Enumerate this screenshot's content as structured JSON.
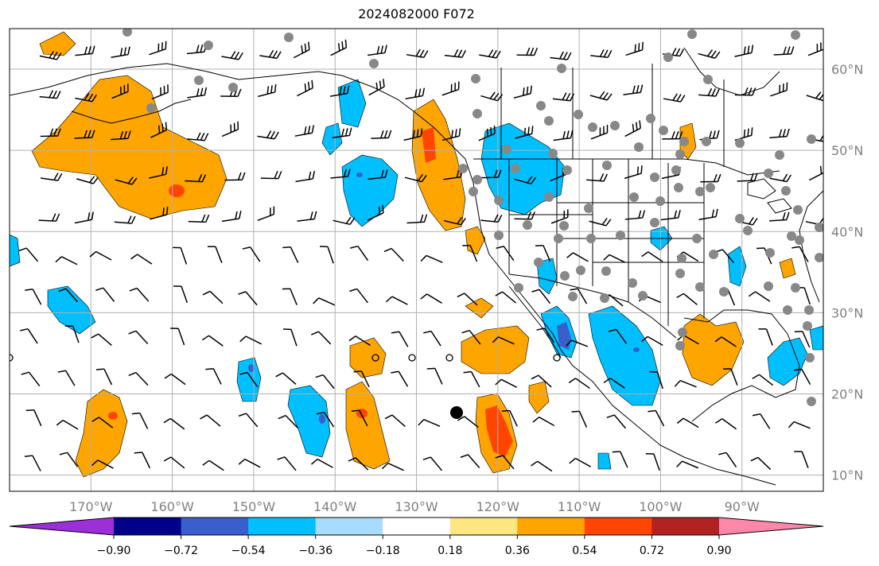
{
  "title": "2024082000 F072",
  "map": {
    "lon_range": [
      -180,
      -80
    ],
    "lat_range": [
      8,
      65
    ],
    "gridlines": true,
    "lon_ticks": [
      {
        "value": -170,
        "label": "170°W"
      },
      {
        "value": -160,
        "label": "160°W"
      },
      {
        "value": -150,
        "label": "150°W"
      },
      {
        "value": -140,
        "label": "140°W"
      },
      {
        "value": -130,
        "label": "130°W"
      },
      {
        "value": -120,
        "label": "120°W"
      },
      {
        "value": -110,
        "label": "110°W"
      },
      {
        "value": -100,
        "label": "100°W"
      },
      {
        "value": -90,
        "label": "90°W"
      }
    ],
    "lat_ticks": [
      {
        "value": 60,
        "label": "60°N"
      },
      {
        "value": 50,
        "label": "50°N"
      },
      {
        "value": 40,
        "label": "40°N"
      },
      {
        "value": 30,
        "label": "30°N"
      },
      {
        "value": 20,
        "label": "20°N"
      },
      {
        "value": 10,
        "label": "10°N"
      }
    ],
    "lat_label_side": "right"
  },
  "colorbar": {
    "bounds": [
      -0.9,
      -0.72,
      -0.54,
      -0.36,
      -0.18,
      0.18,
      0.36,
      0.54,
      0.72,
      0.9
    ],
    "tick_labels": [
      "−0.90",
      "−0.72",
      "−0.54",
      "−0.36",
      "−0.18",
      "0.18",
      "0.36",
      "0.54",
      "0.72",
      "0.90"
    ],
    "colors": [
      "#9b30d9",
      "#00008b",
      "#3a5fcd",
      "#00bfff",
      "#a8dcff",
      "#ffffff",
      "#ffe680",
      "#ffa500",
      "#ff4500",
      "#b22222",
      "#ff88aa"
    ],
    "extend": "both"
  },
  "colors": {
    "positive_fill": "#ffa500",
    "positive_core": "#ff4500",
    "negative_fill": "#00bfff",
    "negative_core": "#3a5fcd",
    "station_marker": "#888888",
    "coastline": "#000000",
    "grid": "#b0b0b0",
    "tick_label": "#808080"
  }
}
